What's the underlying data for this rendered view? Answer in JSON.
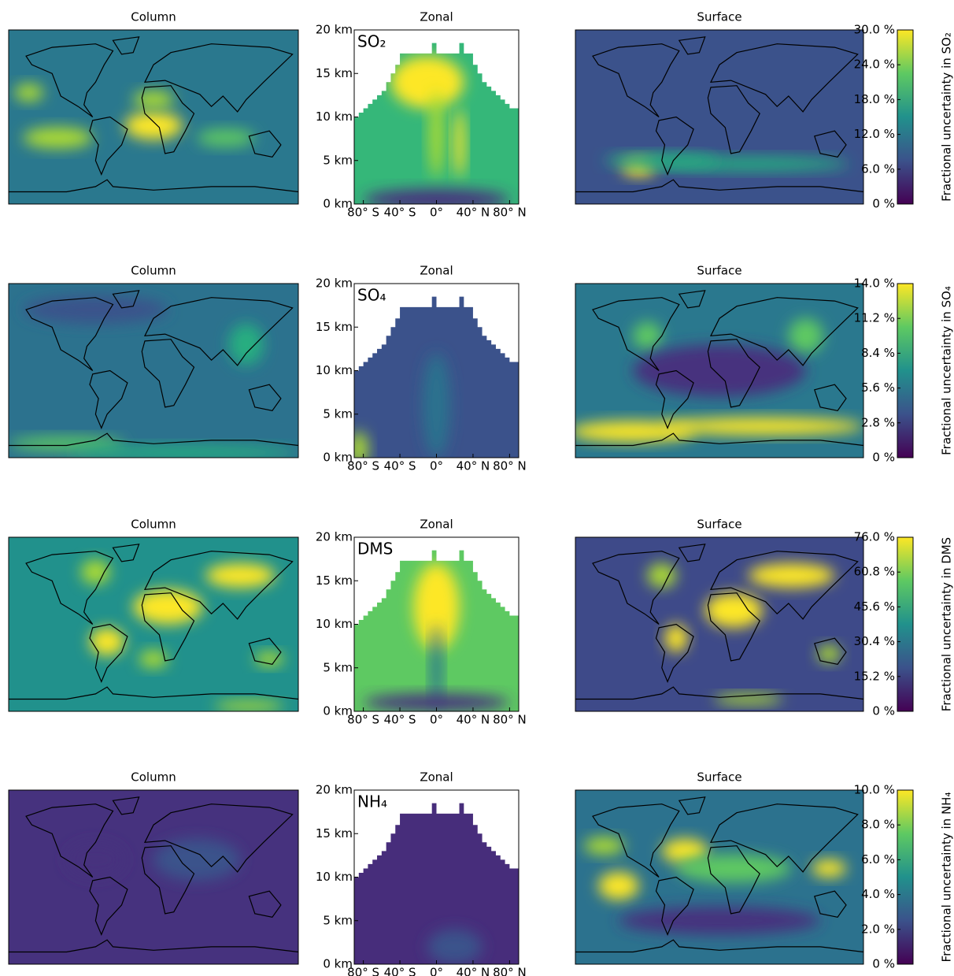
{
  "chart_data": [
    {
      "type": "heatmap",
      "species": "SO₂",
      "panel_titles": [
        "Column",
        "Zonal",
        "Surface"
      ],
      "zonal": {
        "xlim": [
          -90,
          90
        ],
        "xticks": [
          {
            "value": -80,
            "label": "80° S"
          },
          {
            "value": -40,
            "label": "40° S"
          },
          {
            "value": 0,
            "label": "0°"
          },
          {
            "value": 40,
            "label": "40° N"
          },
          {
            "value": 80,
            "label": "80° N"
          }
        ],
        "ylim": [
          0,
          20
        ],
        "yticks": [
          {
            "value": 0,
            "label": "0 km"
          },
          {
            "value": 5,
            "label": "5 km"
          },
          {
            "value": 10,
            "label": "10 km"
          },
          {
            "value": 15,
            "label": "15 km"
          },
          {
            "value": 20,
            "label": "20 km"
          }
        ]
      },
      "colorbar": {
        "label": "Fractional uncertainty in SO₂",
        "ylim": [
          0,
          30
        ],
        "yticks": [
          {
            "value": 0,
            "label": "0 %"
          },
          {
            "value": 6,
            "label": "6.0 %"
          },
          {
            "value": 12,
            "label": "12.0 %"
          },
          {
            "value": 18,
            "label": "18.0 %"
          },
          {
            "value": 24,
            "label": "24.0 %"
          },
          {
            "value": 30,
            "label": "30.0 %"
          }
        ]
      },
      "colormap": [
        "#440154",
        "#3b528b",
        "#21918c",
        "#5ec962",
        "#fde725"
      ]
    },
    {
      "type": "heatmap",
      "species": "SO₄",
      "panel_titles": [
        "Column",
        "Zonal",
        "Surface"
      ],
      "zonal": {
        "xlim": [
          -90,
          90
        ],
        "xticks": [
          {
            "value": -80,
            "label": "80° S"
          },
          {
            "value": -40,
            "label": "40° S"
          },
          {
            "value": 0,
            "label": "0°"
          },
          {
            "value": 40,
            "label": "40° N"
          },
          {
            "value": 80,
            "label": "80° N"
          }
        ],
        "ylim": [
          0,
          20
        ],
        "yticks": [
          {
            "value": 0,
            "label": "0 km"
          },
          {
            "value": 5,
            "label": "5 km"
          },
          {
            "value": 10,
            "label": "10 km"
          },
          {
            "value": 15,
            "label": "15 km"
          },
          {
            "value": 20,
            "label": "20 km"
          }
        ]
      },
      "colorbar": {
        "label": "Fractional uncertainty in SO₄",
        "ylim": [
          0,
          14
        ],
        "yticks": [
          {
            "value": 0,
            "label": "0 %"
          },
          {
            "value": 2.8,
            "label": "2.8 %"
          },
          {
            "value": 5.6,
            "label": "5.6 %"
          },
          {
            "value": 8.4,
            "label": "8.4 %"
          },
          {
            "value": 11.2,
            "label": "11.2 %"
          },
          {
            "value": 14,
            "label": "14.0 %"
          }
        ]
      },
      "colormap": [
        "#440154",
        "#3b528b",
        "#21918c",
        "#5ec962",
        "#fde725"
      ]
    },
    {
      "type": "heatmap",
      "species": "DMS",
      "panel_titles": [
        "Column",
        "Zonal",
        "Surface"
      ],
      "zonal": {
        "xlim": [
          -90,
          90
        ],
        "xticks": [
          {
            "value": -80,
            "label": "80° S"
          },
          {
            "value": -40,
            "label": "40° S"
          },
          {
            "value": 0,
            "label": "0°"
          },
          {
            "value": 40,
            "label": "40° N"
          },
          {
            "value": 80,
            "label": "80° N"
          }
        ],
        "ylim": [
          0,
          20
        ],
        "yticks": [
          {
            "value": 0,
            "label": "0 km"
          },
          {
            "value": 5,
            "label": "5 km"
          },
          {
            "value": 10,
            "label": "10 km"
          },
          {
            "value": 15,
            "label": "15 km"
          },
          {
            "value": 20,
            "label": "20 km"
          }
        ]
      },
      "colorbar": {
        "label": "Fractional uncertainty in DMS",
        "ylim": [
          0,
          76
        ],
        "yticks": [
          {
            "value": 0,
            "label": "0 %"
          },
          {
            "value": 15.2,
            "label": "15.2 %"
          },
          {
            "value": 30.4,
            "label": "30.4 %"
          },
          {
            "value": 45.6,
            "label": "45.6 %"
          },
          {
            "value": 60.8,
            "label": "60.8 %"
          },
          {
            "value": 76,
            "label": "76.0 %"
          }
        ]
      },
      "colormap": [
        "#440154",
        "#3b528b",
        "#21918c",
        "#5ec962",
        "#fde725"
      ]
    },
    {
      "type": "heatmap",
      "species": "NH₄",
      "panel_titles": [
        "Column",
        "Zonal",
        "Surface"
      ],
      "zonal": {
        "xlim": [
          -90,
          90
        ],
        "xticks": [
          {
            "value": -80,
            "label": "80° S"
          },
          {
            "value": -40,
            "label": "40° S"
          },
          {
            "value": 0,
            "label": "0°"
          },
          {
            "value": 40,
            "label": "40° N"
          },
          {
            "value": 80,
            "label": "80° N"
          }
        ],
        "ylim": [
          0,
          20
        ],
        "yticks": [
          {
            "value": 0,
            "label": "0 km"
          },
          {
            "value": 5,
            "label": "5 km"
          },
          {
            "value": 10,
            "label": "10 km"
          },
          {
            "value": 15,
            "label": "15 km"
          },
          {
            "value": 20,
            "label": "20 km"
          }
        ]
      },
      "colorbar": {
        "label": "Fractional uncertainty in NH₄",
        "ylim": [
          0,
          10
        ],
        "yticks": [
          {
            "value": 0,
            "label": "0 %"
          },
          {
            "value": 2,
            "label": "2.0 %"
          },
          {
            "value": 4,
            "label": "4.0 %"
          },
          {
            "value": 6,
            "label": "6.0 %"
          },
          {
            "value": 8,
            "label": "8.0 %"
          },
          {
            "value": 10,
            "label": "10.0 %"
          }
        ]
      },
      "colormap": [
        "#440154",
        "#3b528b",
        "#21918c",
        "#5ec962",
        "#fde725"
      ]
    }
  ]
}
